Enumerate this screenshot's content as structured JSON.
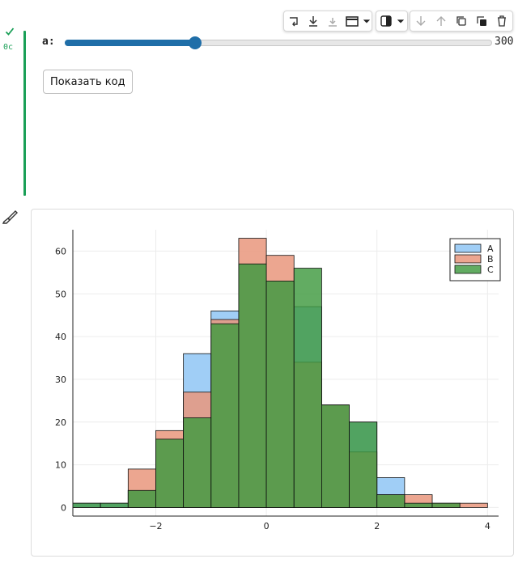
{
  "cell": {
    "run_time": "0с",
    "status": "success"
  },
  "toolbar": {
    "group1": [
      "insert-cell-icon",
      "run-to-here-icon",
      "run-from-here-icon",
      "layout-icon",
      "dropdown-icon"
    ],
    "group2": [
      "theme-toggle-icon",
      "dropdown-icon"
    ],
    "group3": [
      "move-down-icon",
      "move-up-icon",
      "copy-icon",
      "duplicate-icon",
      "delete-icon"
    ]
  },
  "slider": {
    "label": "a:",
    "value": "300",
    "fraction": 0.305,
    "accent": "#1f6ea8"
  },
  "show_code_button": "Показать код",
  "chart_data": {
    "type": "bar",
    "title": "",
    "xlabel": "",
    "ylabel": "",
    "xlim": [
      -3.5,
      4.2
    ],
    "ylim": [
      -2,
      65
    ],
    "xticks": [
      -2,
      0,
      2,
      4
    ],
    "yticks": [
      0,
      10,
      20,
      30,
      40,
      50,
      60
    ],
    "xtick_labels": [
      "−2",
      "0",
      "2",
      "4"
    ],
    "ytick_labels": [
      "0",
      "10",
      "20",
      "30",
      "40",
      "50",
      "60"
    ],
    "grid": true,
    "legend": "top-right",
    "bin_edges": [
      -3.5,
      -3,
      -2.5,
      -2,
      -1.5,
      -1,
      -0.5,
      0,
      0.5,
      1,
      1.5,
      2,
      2.5,
      3,
      3.5,
      4
    ],
    "series": [
      {
        "name": "A",
        "color": "#9bcbf5",
        "opacity": 0.95,
        "values": [
          1,
          1,
          4,
          16,
          36,
          46,
          57,
          53,
          47,
          24,
          20,
          7,
          1,
          0,
          0
        ]
      },
      {
        "name": "B",
        "color": "#e9977c",
        "opacity": 0.85,
        "values": [
          0,
          0,
          9,
          18,
          27,
          44,
          63,
          59,
          34,
          24,
          13,
          3,
          3,
          1,
          1
        ]
      },
      {
        "name": "C",
        "color": "#3f9a3f",
        "opacity": 0.82,
        "values": [
          1,
          1,
          4,
          16,
          21,
          43,
          57,
          53,
          56,
          24,
          20,
          3,
          1,
          1,
          0
        ]
      }
    ]
  }
}
